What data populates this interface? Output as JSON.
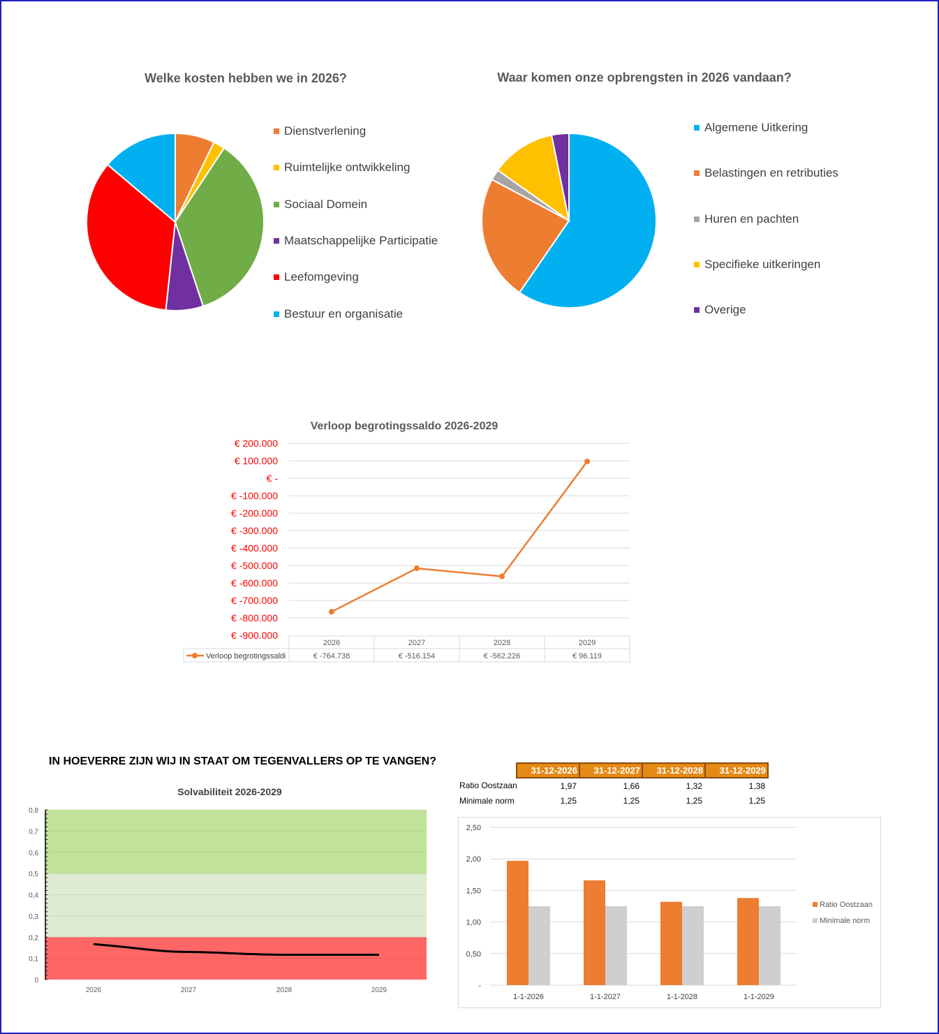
{
  "chart_data": [
    {
      "type": "pie",
      "title": "Welke kosten hebben we in 2026?",
      "legend_position": "right",
      "labels": [
        "Dienstverlening",
        "Ruimtelijke ontwikkeling",
        "Sociaal Domein",
        "Maatschappelijke Participatie",
        "Leefomgeving",
        "Bestuur en organisatie"
      ],
      "values": [
        7.2,
        2.1,
        35.6,
        6.8,
        34.5,
        13.8
      ],
      "colors": [
        "#ed7d31",
        "#ffc000",
        "#70ad47",
        "#7030a0",
        "#ff0000",
        "#00b0f0"
      ]
    },
    {
      "type": "pie",
      "title": "Waar komen onze opbrengsten in 2026 vandaan?",
      "legend_position": "right",
      "labels": [
        "Algemene Uitkering",
        "Belastingen en retributies",
        "Huren en pachten",
        "Specifieke uitkeringen",
        "Overige"
      ],
      "values": [
        59.6,
        23.2,
        2.0,
        12.0,
        3.2
      ],
      "colors": [
        "#00b0f0",
        "#ed7d31",
        "#a5a5a5",
        "#ffc000",
        "#7030a0"
      ]
    },
    {
      "type": "line",
      "title": "Verloop begrotingssaldo 2026-2029",
      "categories": [
        "2026",
        "2027",
        "2028",
        "2029"
      ],
      "series": [
        {
          "name": "Verloop begrotingssaldi",
          "values": [
            -764738,
            -516154,
            -562226,
            96119
          ],
          "labels": [
            "€ -764.738",
            "€ -516.154",
            "€ -562.226",
            "€ 96.119"
          ],
          "color": "#ed7d31"
        }
      ],
      "ylim": [
        -900000,
        200000
      ],
      "yticks": [
        "€ 200.000",
        "€ 100.000",
        "€ -",
        "€ -100.000",
        "€ -200.000",
        "€ -300.000",
        "€ -400.000",
        "€ -500.000",
        "€ -600.000",
        "€ -700.000",
        "€ -800.000",
        "€ -900.000"
      ],
      "legend_position": "bottom data table",
      "grid": true
    },
    {
      "type": "line",
      "title": "Solvabiliteit 2026-2029",
      "categories": [
        "2026",
        "2027",
        "2028",
        "2029"
      ],
      "series": [
        {
          "name": "Solvabiliteit",
          "values": [
            0.167,
            0.13,
            0.117,
            0.117
          ],
          "color": "#000000"
        }
      ],
      "ylim": [
        0,
        0.8
      ],
      "yticks": [
        "0",
        "0,1",
        "0,2",
        "0,3",
        "0,4",
        "0,5",
        "0,6",
        "0,7",
        "0,8"
      ],
      "bands": [
        {
          "from": 0,
          "to": 0.2,
          "color": "#ff6666"
        },
        {
          "from": 0.2,
          "to": 0.5,
          "color": "#dcebd1"
        },
        {
          "from": 0.5,
          "to": 0.8,
          "color": "#c0e399"
        }
      ],
      "grid": true
    },
    {
      "type": "bar",
      "categories": [
        "1-1-2026",
        "1-1-2027",
        "1-1-2028",
        "1-1-2029"
      ],
      "series": [
        {
          "name": "Ratio Oostzaan",
          "values": [
            1.97,
            1.66,
            1.32,
            1.38
          ],
          "color": "#ed7d31"
        },
        {
          "name": "Minimale norm",
          "values": [
            1.25,
            1.25,
            1.25,
            1.25
          ],
          "color": "#d0cece"
        }
      ],
      "ylim": [
        0,
        2.5
      ],
      "yticks": [
        "-",
        "0,50",
        "1,00",
        "1,50",
        "2,00",
        "2,50"
      ],
      "legend_position": "right",
      "grid": true
    }
  ],
  "solvency_heading": "IN HOEVERRE ZIJN WIJ IN STAAT OM TEGENVALLERS OP TE VANGEN?",
  "ratio_table": {
    "headers": [
      "31-12-2026",
      "31-12-2027",
      "31-12-2028",
      "31-12-2029"
    ],
    "rows": [
      {
        "label": "Ratio Oostzaan",
        "values": [
          "1,97",
          "1,66",
          "1,32",
          "1,38"
        ]
      },
      {
        "label": "Minimale norm",
        "values": [
          "1,25",
          "1,25",
          "1,25",
          "1,25"
        ]
      }
    ]
  }
}
